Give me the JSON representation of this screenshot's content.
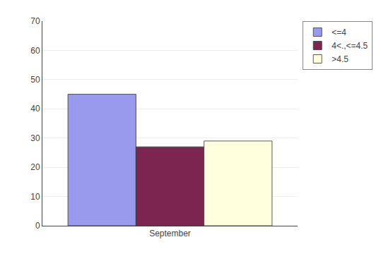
{
  "chart_data": {
    "type": "bar",
    "categories": [
      "September"
    ],
    "series": [
      {
        "name": "<=4",
        "color": "#9999EE",
        "values": [
          45
        ]
      },
      {
        "name": "4<.,<=4.5",
        "color": "#7B2550",
        "values": [
          27
        ]
      },
      {
        "name": ">4.5",
        "color": "#FFFFDD",
        "values": [
          29
        ]
      }
    ],
    "ylim": [
      0,
      70
    ],
    "yticks": [
      0,
      10,
      20,
      30,
      40,
      50,
      60,
      70
    ],
    "grid": true,
    "legend": "upper right"
  }
}
